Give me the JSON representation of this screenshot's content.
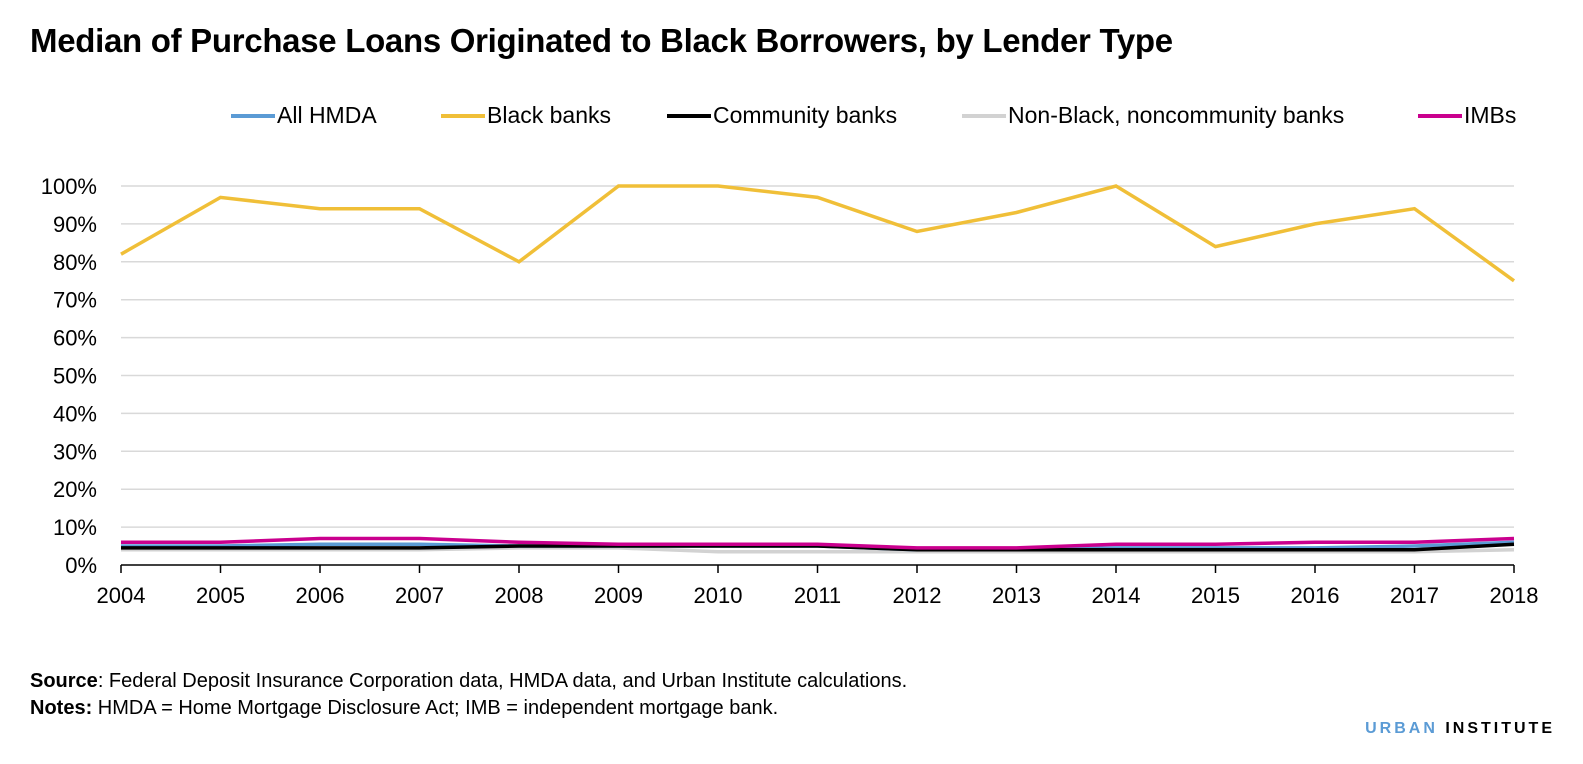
{
  "footer": {
    "source_label": "Source",
    "source_text": ": Federal Deposit Insurance Corporation data, HMDA data, and Urban Institute calculations.",
    "notes_label": "Notes:",
    "notes_text": " HMDA = Home Mortgage Disclosure Act; IMB = independent mortgage bank.",
    "brand_part1": "URBAN",
    "brand_part2": "INSTITUTE",
    "brand_color1": "#5b9bd5",
    "brand_color2": "#000000"
  },
  "chart_data": {
    "type": "line",
    "title": "Median of Purchase Loans Originated to Black Borrowers, by Lender Type",
    "xlabel": "",
    "ylabel": "",
    "ylim": [
      0,
      100
    ],
    "yticks": [
      "0%",
      "10%",
      "20%",
      "30%",
      "40%",
      "50%",
      "60%",
      "70%",
      "80%",
      "90%",
      "100%"
    ],
    "grid": true,
    "legend_position": "top",
    "x": [
      "2004",
      "2005",
      "2006",
      "2007",
      "2008",
      "2009",
      "2010",
      "2011",
      "2012",
      "2013",
      "2014",
      "2015",
      "2016",
      "2017",
      "2018"
    ],
    "series": [
      {
        "name": "All HMDA",
        "color": "#5b9bd5",
        "values": [
          5,
          5,
          5.5,
          5.5,
          5,
          5,
          5,
          5,
          4,
          4,
          4.5,
          4.5,
          4.5,
          5,
          6
        ]
      },
      {
        "name": "Black banks",
        "color": "#f0bf38",
        "values": [
          82,
          97,
          94,
          94,
          80,
          100,
          100,
          97,
          88,
          93,
          100,
          84,
          90,
          94,
          75
        ]
      },
      {
        "name": "Community banks",
        "color": "#000000",
        "values": [
          4.5,
          4.5,
          4.5,
          4.5,
          5,
          5,
          5,
          5,
          4,
          4,
          4,
          4,
          4,
          4,
          5.5
        ]
      },
      {
        "name": "Non-Black, noncommunity banks",
        "color": "#d2d2d2",
        "values": [
          4,
          4,
          4,
          4,
          4.5,
          4.5,
          3.5,
          3.5,
          3.5,
          3.5,
          3.5,
          3.5,
          3.5,
          3.5,
          4
        ]
      },
      {
        "name": "IMBs",
        "color": "#ca008e",
        "values": [
          6,
          6,
          7,
          7,
          6,
          5.5,
          5.5,
          5.5,
          4.5,
          4.5,
          5.5,
          5.5,
          6,
          6,
          7
        ]
      }
    ]
  }
}
